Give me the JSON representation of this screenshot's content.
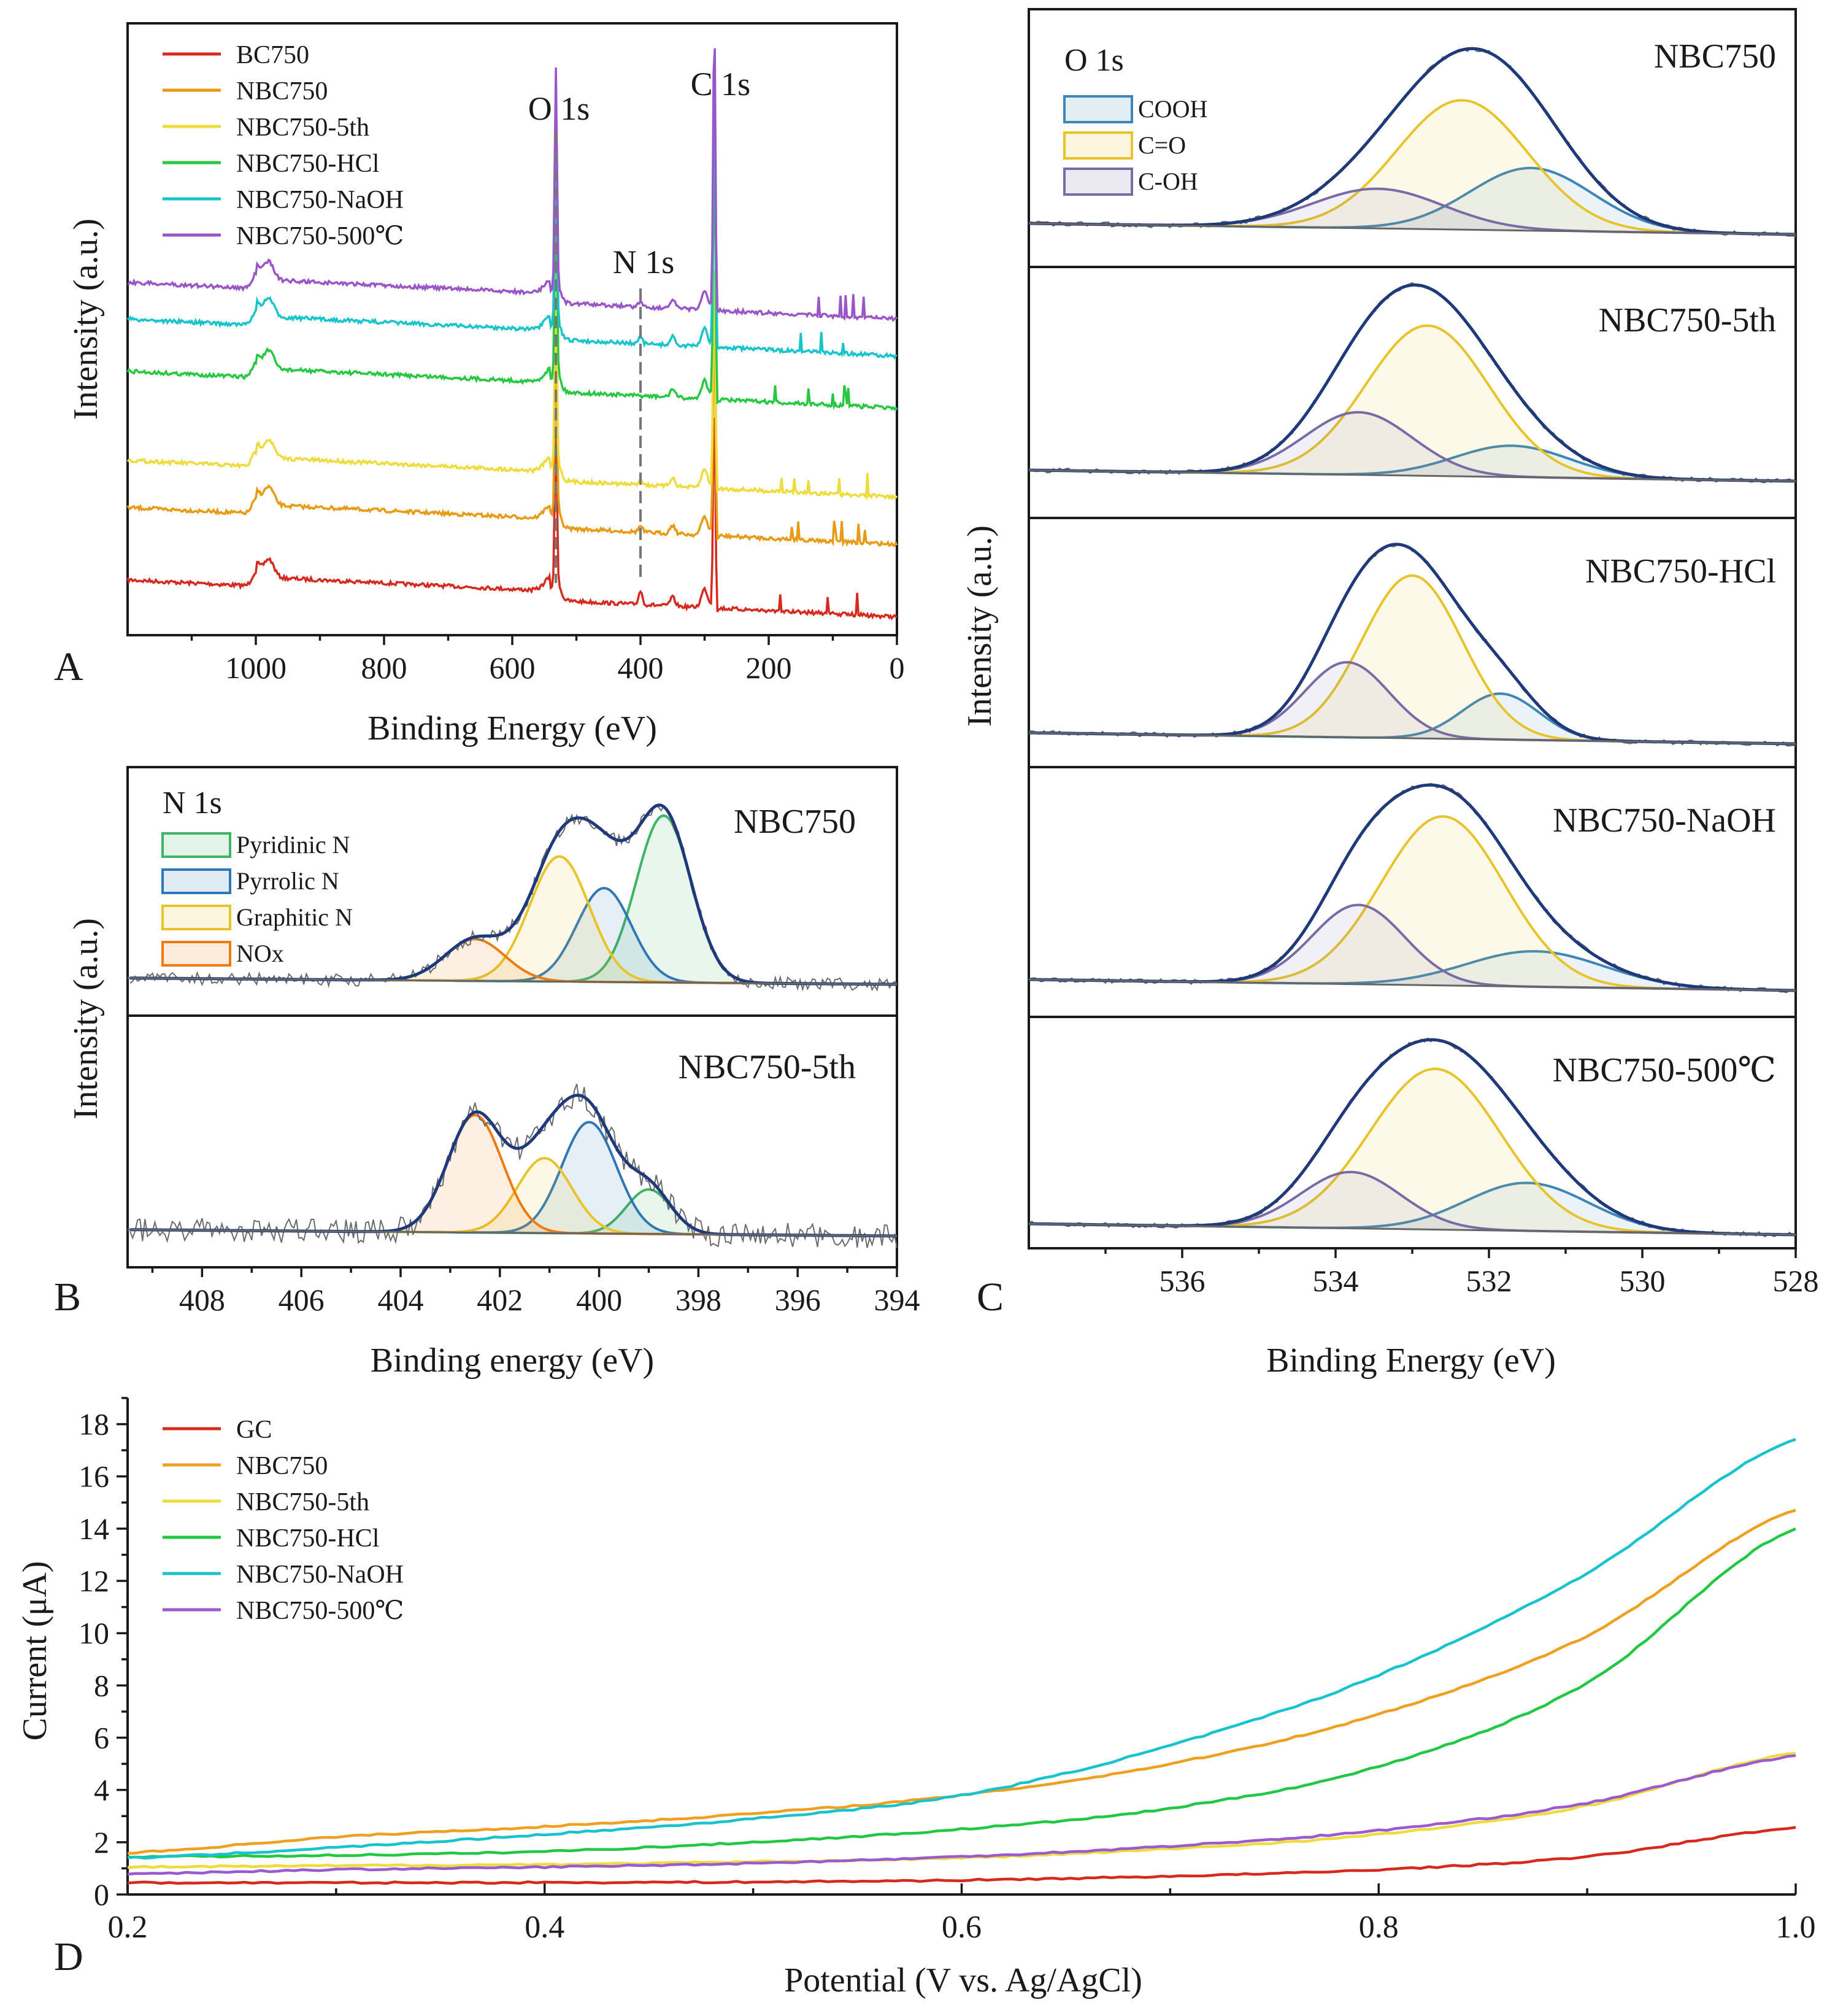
{
  "figure": {
    "panel_letters": [
      "A",
      "B",
      "C",
      "D"
    ]
  },
  "chart_data": [
    {
      "id": "A",
      "type": "line",
      "title": "",
      "xlabel": "Binding Energy (eV)",
      "ylabel": "Intensity (a.u.)",
      "xlim": [
        1200,
        0
      ],
      "xticks": [
        1000,
        800,
        600,
        400,
        200,
        0
      ],
      "yticks": [],
      "peak_labels": [
        {
          "text": "O 1s",
          "x": 532
        },
        {
          "text": "N 1s",
          "x": 400
        },
        {
          "text": "C 1s",
          "x": 284.8
        }
      ],
      "series": [
        {
          "name": "BC750",
          "color": "#d62a1e",
          "offset": 0
        },
        {
          "name": "NBC750",
          "color": "#e89a12",
          "offset": 1
        },
        {
          "name": "NBC750-5th",
          "color": "#eedb3c",
          "offset": 2
        },
        {
          "name": "NBC750-HCl",
          "color": "#27c742",
          "offset": 3
        },
        {
          "name": "NBC750-NaOH",
          "color": "#18c4cc",
          "offset": 4
        },
        {
          "name": "NBC750-500℃",
          "color": "#9a56c9",
          "offset": 5
        }
      ]
    },
    {
      "id": "B",
      "type": "line",
      "xlabel": "Binding energy (eV)",
      "ylabel": "Intensity (a.u.)",
      "xlim": [
        409.5,
        394
      ],
      "xticks": [
        408,
        406,
        404,
        402,
        400,
        398,
        396,
        394
      ],
      "region_label": "N 1s",
      "legend": [
        {
          "name": "Pyridinic N",
          "color": "#3fb466"
        },
        {
          "name": "Pyrrolic N",
          "color": "#2e78b8"
        },
        {
          "name": "Graphitic N",
          "color": "#e8c42a"
        },
        {
          "name": "NOx",
          "color": "#ef7a12"
        }
      ],
      "subpanels": [
        {
          "label": "NBC750",
          "noise": 0.03,
          "components": [
            {
              "name": "Pyridinic N",
              "center": 398.7,
              "height": 0.8,
              "sigma": 0.55
            },
            {
              "name": "Pyrrolic N",
              "center": 399.9,
              "height": 0.45,
              "sigma": 0.55
            },
            {
              "name": "Graphitic N",
              "center": 400.8,
              "height": 0.6,
              "sigma": 0.6
            },
            {
              "name": "NOx",
              "center": 402.5,
              "height": 0.2,
              "sigma": 0.6
            }
          ]
        },
        {
          "label": "NBC750-5th",
          "noise": 0.06,
          "components": [
            {
              "name": "Pyridinic N",
              "center": 399.0,
              "height": 0.22,
              "sigma": 0.45
            },
            {
              "name": "Pyrrolic N",
              "center": 400.2,
              "height": 0.55,
              "sigma": 0.55
            },
            {
              "name": "Graphitic N",
              "center": 401.1,
              "height": 0.37,
              "sigma": 0.55
            },
            {
              "name": "NOx",
              "center": 402.5,
              "height": 0.58,
              "sigma": 0.55
            }
          ]
        }
      ]
    },
    {
      "id": "C",
      "type": "line",
      "xlabel": "Binding Energy (eV)",
      "ylabel": "Intensity (a.u.)",
      "xlim": [
        538,
        528
      ],
      "xticks": [
        536,
        534,
        532,
        530,
        528
      ],
      "region_label": "O 1s",
      "legend": [
        {
          "name": "COOH",
          "color": "#3c86b8"
        },
        {
          "name": "C=O",
          "color": "#e8c42a"
        },
        {
          "name": "C-OH",
          "color": "#7a6aa6"
        }
      ],
      "subpanels": [
        {
          "label": "NBC750",
          "components": [
            {
              "name": "COOH",
              "center": 531.45,
              "height": 0.3,
              "sigma": 0.8
            },
            {
              "name": "C=O",
              "center": 532.35,
              "height": 0.62,
              "sigma": 0.85
            },
            {
              "name": "C-OH",
              "center": 533.45,
              "height": 0.19,
              "sigma": 0.85
            }
          ]
        },
        {
          "label": "NBC750-5th",
          "components": [
            {
              "name": "COOH",
              "center": 531.7,
              "height": 0.15,
              "sigma": 0.75
            },
            {
              "name": "C=O",
              "center": 532.8,
              "height": 0.72,
              "sigma": 0.8
            },
            {
              "name": "C-OH",
              "center": 533.7,
              "height": 0.3,
              "sigma": 0.7
            }
          ]
        },
        {
          "label": "NBC750-HCl",
          "components": [
            {
              "name": "COOH",
              "center": 531.85,
              "height": 0.22,
              "sigma": 0.5
            },
            {
              "name": "C=O",
              "center": 533.0,
              "height": 0.78,
              "sigma": 0.65
            },
            {
              "name": "C-OH",
              "center": 533.85,
              "height": 0.36,
              "sigma": 0.55
            }
          ]
        },
        {
          "label": "NBC750-NaOH",
          "components": [
            {
              "name": "COOH",
              "center": 531.4,
              "height": 0.17,
              "sigma": 0.9
            },
            {
              "name": "C=O",
              "center": 532.6,
              "height": 0.81,
              "sigma": 0.8
            },
            {
              "name": "C-OH",
              "center": 533.7,
              "height": 0.38,
              "sigma": 0.6
            }
          ]
        },
        {
          "label": "NBC750-500℃",
          "components": [
            {
              "name": "COOH",
              "center": 531.5,
              "height": 0.23,
              "sigma": 0.8
            },
            {
              "name": "C=O",
              "center": 532.7,
              "height": 0.77,
              "sigma": 0.85
            },
            {
              "name": "C-OH",
              "center": 533.8,
              "height": 0.27,
              "sigma": 0.65
            }
          ]
        }
      ]
    },
    {
      "id": "D",
      "type": "line",
      "xlabel": "Potential (V vs. Ag/AgCl)",
      "ylabel": "Current (μA)",
      "xlim": [
        0.2,
        1.0
      ],
      "ylim": [
        0,
        19
      ],
      "xticks": [
        0.2,
        0.4,
        0.6,
        0.8,
        1.0
      ],
      "xtick_labels": [
        "0.2",
        "0.4",
        "0.6",
        "0.8",
        "1.0"
      ],
      "yticks": [
        0,
        2,
        4,
        6,
        8,
        10,
        12,
        14,
        16,
        18
      ],
      "x": [
        0.2,
        0.3,
        0.4,
        0.5,
        0.6,
        0.7,
        0.8,
        0.9,
        1.0
      ],
      "series": [
        {
          "name": "GC",
          "color": "#d62a1e",
          "values": [
            0.45,
            0.45,
            0.46,
            0.48,
            0.55,
            0.7,
            0.95,
            1.45,
            2.55
          ]
        },
        {
          "name": "NBC750",
          "color": "#f0a020",
          "values": [
            1.6,
            2.2,
            2.6,
            3.1,
            3.8,
            5.0,
            6.9,
            9.9,
            14.7
          ]
        },
        {
          "name": "NBC750-5th",
          "color": "#eedb3c",
          "values": [
            1.05,
            1.1,
            1.15,
            1.25,
            1.4,
            1.75,
            2.3,
            3.4,
            5.4
          ]
        },
        {
          "name": "NBC750-HCl",
          "color": "#22c743",
          "values": [
            1.45,
            1.5,
            1.65,
            2.0,
            2.5,
            3.3,
            4.9,
            8.1,
            14.0
          ]
        },
        {
          "name": "NBC750-NaOH",
          "color": "#19c3cd",
          "values": [
            1.4,
            1.8,
            2.3,
            2.9,
            3.8,
            5.7,
            8.4,
            12.3,
            17.4
          ]
        },
        {
          "name": "NBC750-500℃",
          "color": "#9b5ad0",
          "values": [
            0.8,
            0.95,
            1.05,
            1.2,
            1.45,
            1.85,
            2.45,
            3.5,
            5.3
          ]
        }
      ]
    }
  ]
}
